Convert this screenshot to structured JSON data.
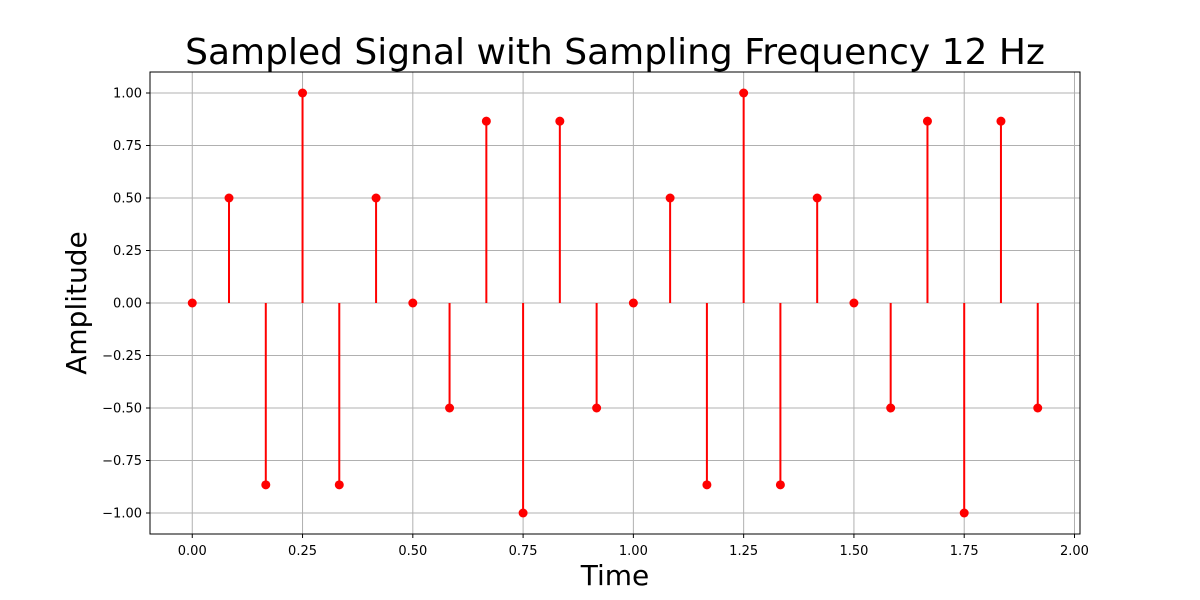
{
  "chart_data": {
    "type": "stem",
    "title": "Sampled Signal with Sampling Frequency 12 Hz",
    "xlabel": "Time",
    "ylabel": "Amplitude",
    "xlim": [
      -0.0958,
      2.0125
    ],
    "ylim": [
      -1.1,
      1.1
    ],
    "grid": true,
    "color": "#ff0000",
    "x_ticks": [
      0.0,
      0.25,
      0.5,
      0.75,
      1.0,
      1.25,
      1.5,
      1.75,
      2.0
    ],
    "x_tick_labels": [
      "0.00",
      "0.25",
      "0.50",
      "0.75",
      "1.00",
      "1.25",
      "1.50",
      "1.75",
      "2.00"
    ],
    "y_ticks": [
      1.0,
      0.75,
      0.5,
      0.25,
      0.0,
      -0.25,
      -0.5,
      -0.75,
      -1.0
    ],
    "y_tick_labels": [
      "1.00",
      "0.75",
      "0.50",
      "0.25",
      "0.00",
      "−0.25",
      "−0.50",
      "−0.75",
      "−1.00"
    ],
    "x": [
      0.0,
      0.0833,
      0.1667,
      0.25,
      0.3333,
      0.4167,
      0.5,
      0.5833,
      0.6667,
      0.75,
      0.8333,
      0.9167,
      1.0,
      1.0833,
      1.1667,
      1.25,
      1.3333,
      1.4167,
      1.5,
      1.5833,
      1.6667,
      1.75,
      1.8333,
      1.9167
    ],
    "y": [
      0.0,
      0.5,
      -0.866,
      1.0,
      -0.866,
      0.5,
      0.0,
      -0.5,
      0.866,
      -1.0,
      0.866,
      -0.5,
      0.0,
      0.5,
      -0.866,
      1.0,
      -0.866,
      0.5,
      0.0,
      -0.5,
      0.866,
      -1.0,
      0.866,
      -0.5
    ]
  }
}
